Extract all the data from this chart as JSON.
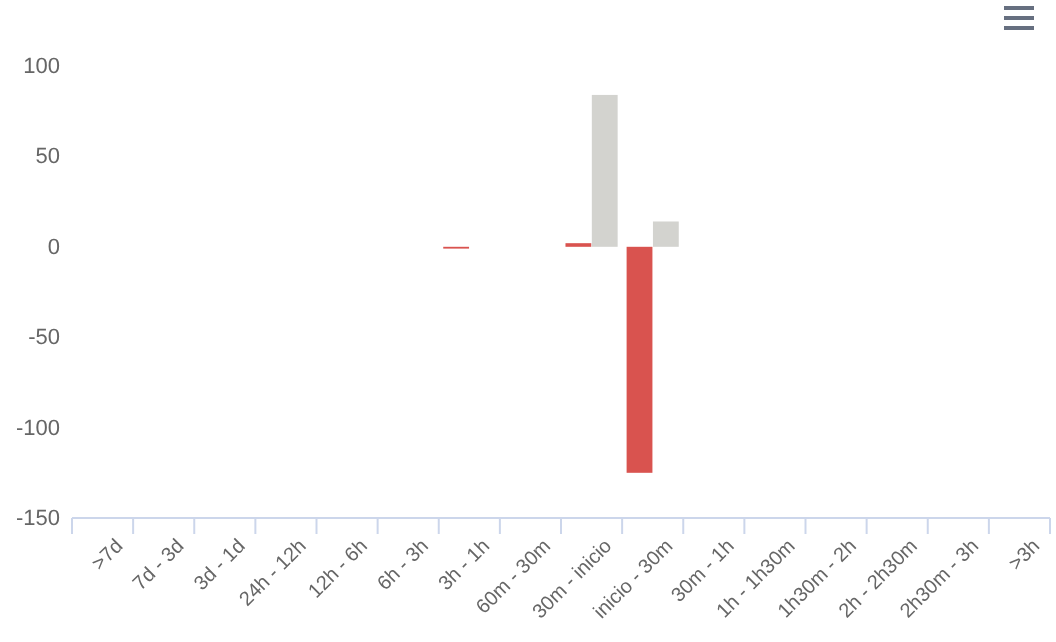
{
  "chart_data": {
    "type": "bar",
    "categories": [
      ">7d",
      "7d - 3d",
      "3d - 1d",
      "24h - 12h",
      "12h - 6h",
      "6h - 3h",
      "3h - 1h",
      "60m - 30m",
      "30m - inicio",
      "inicio - 30m",
      "30m - 1h",
      "1h - 1h30m",
      "1h30m - 2h",
      "2h - 2h30m",
      "2h30m - 3h",
      ">3h"
    ],
    "series": [
      {
        "color": "#d9534f",
        "values": [
          0,
          0,
          0,
          0,
          0,
          0,
          -1,
          0,
          2,
          -125,
          0,
          0,
          0,
          0,
          0,
          0
        ]
      },
      {
        "color": "#d3d3cf",
        "values": [
          0,
          0,
          0,
          0,
          0,
          0,
          0,
          0,
          84,
          14,
          0,
          0,
          0,
          0,
          0,
          0
        ]
      }
    ],
    "ylim": [
      -150,
      100
    ],
    "yticks": [
      -150,
      -100,
      -50,
      0,
      50,
      100
    ]
  }
}
